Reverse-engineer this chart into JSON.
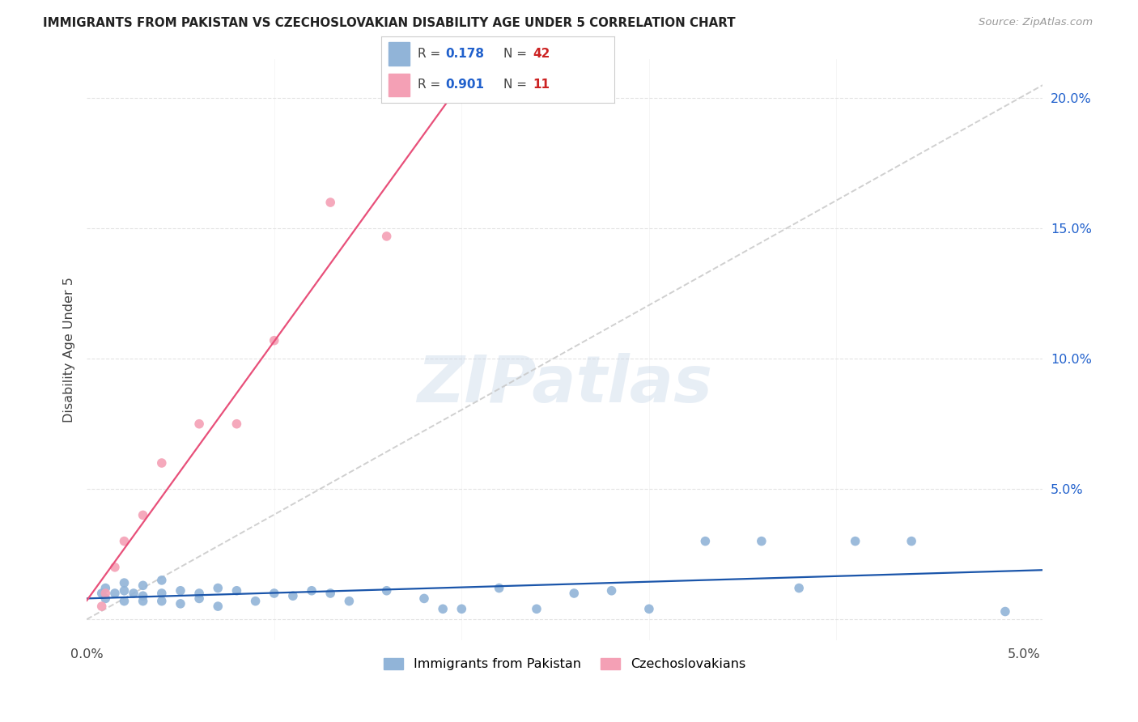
{
  "title": "IMMIGRANTS FROM PAKISTAN VS CZECHOSLOVAKIAN DISABILITY AGE UNDER 5 CORRELATION CHART",
  "source": "Source: ZipAtlas.com",
  "ylabel": "Disability Age Under 5",
  "xlim": [
    0.0,
    0.051
  ],
  "ylim": [
    -0.008,
    0.215
  ],
  "yticks": [
    0.0,
    0.05,
    0.1,
    0.15,
    0.2
  ],
  "ytick_labels": [
    "",
    "5.0%",
    "10.0%",
    "15.0%",
    "20.0%"
  ],
  "xticks": [
    0.0,
    0.01,
    0.02,
    0.03,
    0.04,
    0.05
  ],
  "xtick_labels": [
    "0.0%",
    "",
    "",
    "",
    "",
    "5.0%"
  ],
  "r_pakistan": 0.178,
  "n_pakistan": 42,
  "r_czech": 0.901,
  "n_czech": 11,
  "blue_color": "#91b4d8",
  "pink_color": "#f4a0b5",
  "blue_line_color": "#1a55aa",
  "pink_line_color": "#e8507a",
  "ref_line_color": "#c8c8c8",
  "legend_r_color": "#2060cc",
  "legend_n_color": "#cc2222",
  "background_color": "#ffffff",
  "watermark": "ZIPatlas",
  "pakistan_x": [
    0.0008,
    0.001,
    0.001,
    0.0015,
    0.002,
    0.002,
    0.002,
    0.0025,
    0.003,
    0.003,
    0.003,
    0.004,
    0.004,
    0.004,
    0.005,
    0.005,
    0.006,
    0.006,
    0.007,
    0.007,
    0.008,
    0.009,
    0.01,
    0.011,
    0.012,
    0.013,
    0.014,
    0.016,
    0.018,
    0.019,
    0.02,
    0.022,
    0.024,
    0.026,
    0.028,
    0.03,
    0.033,
    0.036,
    0.038,
    0.041,
    0.044,
    0.049
  ],
  "pakistan_y": [
    0.01,
    0.012,
    0.008,
    0.01,
    0.014,
    0.011,
    0.007,
    0.01,
    0.013,
    0.009,
    0.007,
    0.015,
    0.01,
    0.007,
    0.011,
    0.006,
    0.01,
    0.008,
    0.012,
    0.005,
    0.011,
    0.007,
    0.01,
    0.009,
    0.011,
    0.01,
    0.007,
    0.011,
    0.008,
    0.004,
    0.004,
    0.012,
    0.004,
    0.01,
    0.011,
    0.004,
    0.03,
    0.03,
    0.012,
    0.03,
    0.03,
    0.003
  ],
  "czech_x": [
    0.0008,
    0.001,
    0.0015,
    0.002,
    0.003,
    0.004,
    0.006,
    0.008,
    0.01,
    0.013,
    0.016
  ],
  "czech_y": [
    0.005,
    0.01,
    0.02,
    0.03,
    0.04,
    0.06,
    0.075,
    0.075,
    0.107,
    0.16,
    0.147
  ],
  "grid_color": "#e0e0e0"
}
